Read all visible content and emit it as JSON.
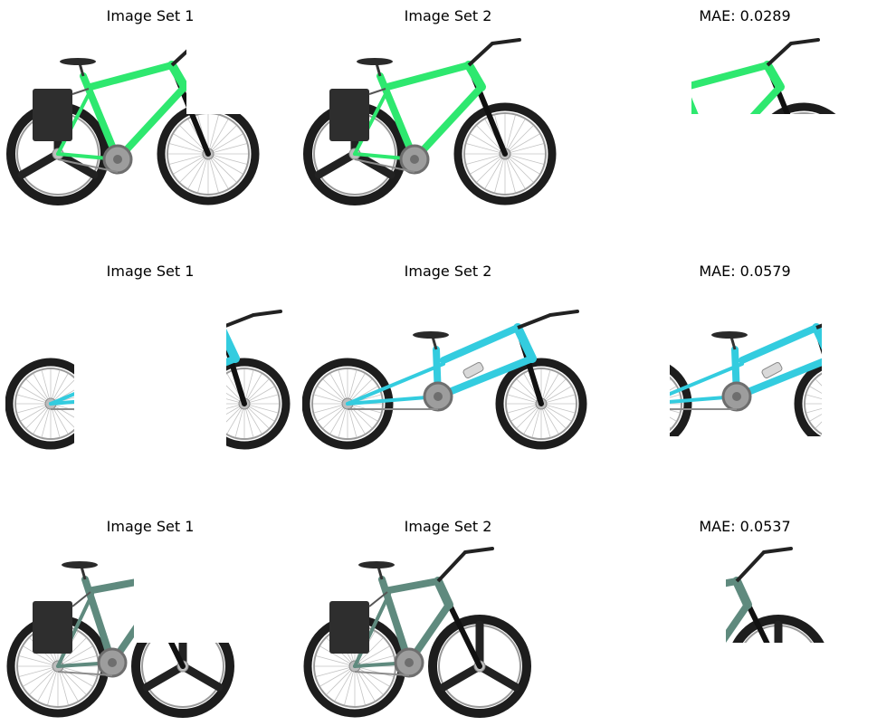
{
  "figure": {
    "rows": [
      {
        "set1_title": "Image Set 1",
        "set2_title": "Image Set 2",
        "mae_title": "MAE: 0.0289",
        "frame_color": "#2ee86f",
        "rear_wheel": "disc-3spoke",
        "front_wheel": "spoked",
        "bag": true
      },
      {
        "set1_title": "Image Set 1",
        "set2_title": "Image Set 2",
        "mae_title": "MAE: 0.0579",
        "frame_color": "#33ccdf",
        "rear_wheel": "spoked",
        "front_wheel": "spoked",
        "bag": false
      },
      {
        "set1_title": "Image Set 1",
        "set2_title": "Image Set 2",
        "mae_title": "MAE: 0.0537",
        "frame_color": "#5f8a7e",
        "rear_wheel": "spoked",
        "front_wheel": "disc-3spoke",
        "bag": true
      }
    ]
  }
}
